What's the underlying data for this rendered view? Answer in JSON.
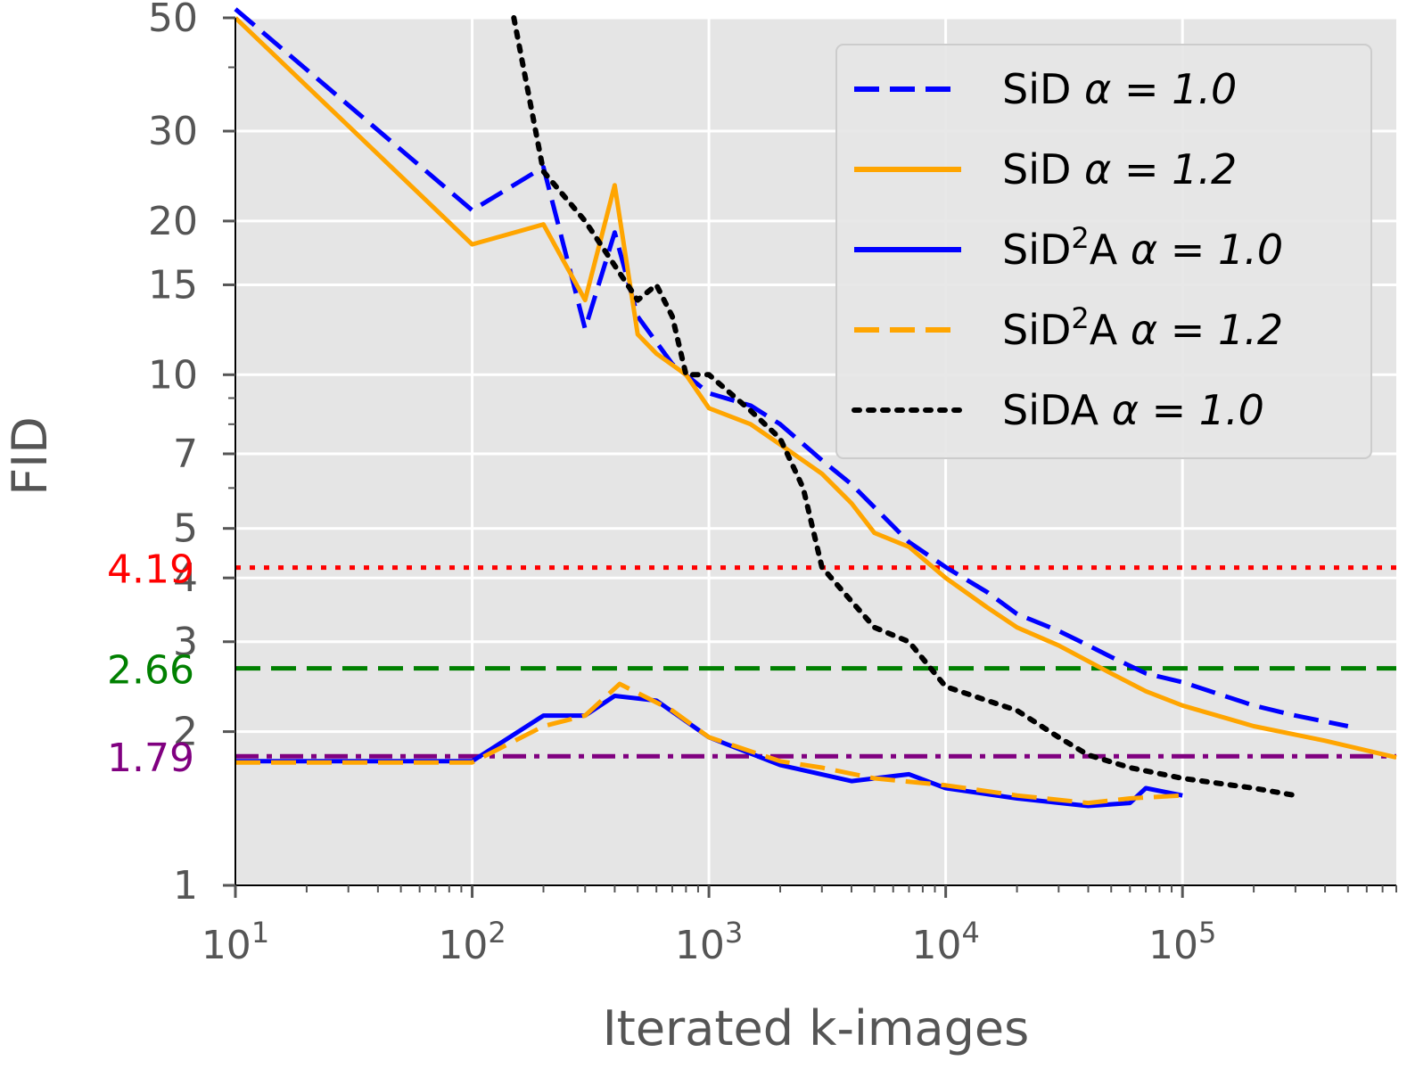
{
  "chart_data": {
    "type": "line",
    "xlabel": "Iterated k-images",
    "ylabel": "FID",
    "xscale": "log",
    "yscale": "log",
    "xlim": [
      10,
      800000
    ],
    "ylim": [
      1,
      50
    ],
    "grid": true,
    "legend_position": "top-right",
    "x_ticks": [
      {
        "value": 10,
        "base": "10",
        "exp": "1"
      },
      {
        "value": 100,
        "base": "10",
        "exp": "2"
      },
      {
        "value": 1000,
        "base": "10",
        "exp": "3"
      },
      {
        "value": 10000,
        "base": "10",
        "exp": "4"
      },
      {
        "value": 100000,
        "base": "10",
        "exp": "5"
      }
    ],
    "y_ticks": [
      {
        "value": 1,
        "label": "1"
      },
      {
        "value": 2,
        "label": "2"
      },
      {
        "value": 3,
        "label": "3"
      },
      {
        "value": 4,
        "label": "4"
      },
      {
        "value": 5,
        "label": "5"
      },
      {
        "value": 7,
        "label": "7"
      },
      {
        "value": 10,
        "label": "10"
      },
      {
        "value": 15,
        "label": "15"
      },
      {
        "value": 20,
        "label": "20"
      },
      {
        "value": 30,
        "label": "30"
      },
      {
        "value": 50,
        "label": "50"
      }
    ],
    "reference_lines": [
      {
        "value": 4.19,
        "label": "4.19",
        "color": "#ff0000",
        "style": "dotted"
      },
      {
        "value": 2.66,
        "label": "2.66",
        "color": "#008000",
        "style": "dashed"
      },
      {
        "value": 1.79,
        "label": "1.79",
        "color": "#800080",
        "style": "dashdot"
      }
    ],
    "series": [
      {
        "legend": {
          "prefix": "SiD ",
          "sup": "",
          "suffix": "",
          "alpha_eq": "α = 1.0"
        },
        "color": "#0000ff",
        "style": "dashed",
        "points": [
          [
            10,
            52
          ],
          [
            100,
            21
          ],
          [
            200,
            25.5
          ],
          [
            300,
            12.3
          ],
          [
            400,
            19
          ],
          [
            500,
            13
          ],
          [
            700,
            10.5
          ],
          [
            1000,
            9.2
          ],
          [
            1500,
            8.7
          ],
          [
            2000,
            8
          ],
          [
            3000,
            6.8
          ],
          [
            4000,
            6.1
          ],
          [
            5000,
            5.5
          ],
          [
            7000,
            4.7
          ],
          [
            10000,
            4.2
          ],
          [
            15000,
            3.75
          ],
          [
            20000,
            3.4
          ],
          [
            30000,
            3.15
          ],
          [
            40000,
            2.95
          ],
          [
            50000,
            2.8
          ],
          [
            70000,
            2.6
          ],
          [
            100000,
            2.5
          ],
          [
            150000,
            2.35
          ],
          [
            200000,
            2.25
          ],
          [
            300000,
            2.15
          ],
          [
            500000,
            2.05
          ]
        ]
      },
      {
        "legend": {
          "prefix": "SiD ",
          "sup": "",
          "suffix": "",
          "alpha_eq": "α = 1.2"
        },
        "color": "#ffa500",
        "style": "solid",
        "points": [
          [
            10,
            50
          ],
          [
            100,
            18
          ],
          [
            200,
            19.7
          ],
          [
            300,
            14
          ],
          [
            400,
            23.5
          ],
          [
            500,
            12
          ],
          [
            600,
            11
          ],
          [
            800,
            10
          ],
          [
            1000,
            8.6
          ],
          [
            1500,
            8
          ],
          [
            2000,
            7.3
          ],
          [
            3000,
            6.4
          ],
          [
            4000,
            5.6
          ],
          [
            5000,
            4.9
          ],
          [
            7000,
            4.6
          ],
          [
            10000,
            4.0
          ],
          [
            15000,
            3.5
          ],
          [
            20000,
            3.2
          ],
          [
            30000,
            2.95
          ],
          [
            50000,
            2.6
          ],
          [
            70000,
            2.4
          ],
          [
            100000,
            2.25
          ],
          [
            200000,
            2.05
          ],
          [
            400000,
            1.92
          ],
          [
            800000,
            1.78
          ]
        ]
      },
      {
        "legend": {
          "prefix": "SiD",
          "sup": "2",
          "suffix": "A ",
          "alpha_eq": "α = 1.0"
        },
        "color": "#0000ff",
        "style": "solid",
        "points": [
          [
            10,
            1.75
          ],
          [
            100,
            1.75
          ],
          [
            200,
            2.15
          ],
          [
            300,
            2.15
          ],
          [
            400,
            2.35
          ],
          [
            600,
            2.3
          ],
          [
            1000,
            1.95
          ],
          [
            2000,
            1.72
          ],
          [
            4000,
            1.6
          ],
          [
            7000,
            1.65
          ],
          [
            10000,
            1.55
          ],
          [
            20000,
            1.48
          ],
          [
            40000,
            1.43
          ],
          [
            60000,
            1.45
          ],
          [
            70000,
            1.55
          ],
          [
            100000,
            1.5
          ]
        ]
      },
      {
        "legend": {
          "prefix": "SiD",
          "sup": "2",
          "suffix": "A ",
          "alpha_eq": "α = 1.2"
        },
        "color": "#ffa500",
        "style": "dashed",
        "points": [
          [
            10,
            1.74
          ],
          [
            100,
            1.74
          ],
          [
            200,
            2.05
          ],
          [
            300,
            2.15
          ],
          [
            420,
            2.48
          ],
          [
            700,
            2.2
          ],
          [
            1000,
            1.95
          ],
          [
            2000,
            1.75
          ],
          [
            3000,
            1.7
          ],
          [
            5000,
            1.62
          ],
          [
            10000,
            1.57
          ],
          [
            20000,
            1.5
          ],
          [
            40000,
            1.45
          ],
          [
            60000,
            1.48
          ],
          [
            100000,
            1.5
          ]
        ]
      },
      {
        "legend": {
          "prefix": "SiDA ",
          "sup": "",
          "suffix": "",
          "alpha_eq": "α = 1.0"
        },
        "color": "#000000",
        "style": "dotted",
        "points": [
          [
            150,
            50
          ],
          [
            200,
            25
          ],
          [
            300,
            20
          ],
          [
            500,
            14
          ],
          [
            600,
            15
          ],
          [
            700,
            13
          ],
          [
            800,
            10
          ],
          [
            1000,
            10
          ],
          [
            1500,
            8.5
          ],
          [
            2000,
            7.5
          ],
          [
            2500,
            6
          ],
          [
            3000,
            4.2
          ],
          [
            4000,
            3.6
          ],
          [
            5000,
            3.2
          ],
          [
            7000,
            3.0
          ],
          [
            10000,
            2.45
          ],
          [
            20000,
            2.2
          ],
          [
            30000,
            1.95
          ],
          [
            40000,
            1.8
          ],
          [
            60000,
            1.7
          ],
          [
            100000,
            1.62
          ],
          [
            200000,
            1.55
          ],
          [
            300000,
            1.5
          ]
        ]
      }
    ]
  }
}
